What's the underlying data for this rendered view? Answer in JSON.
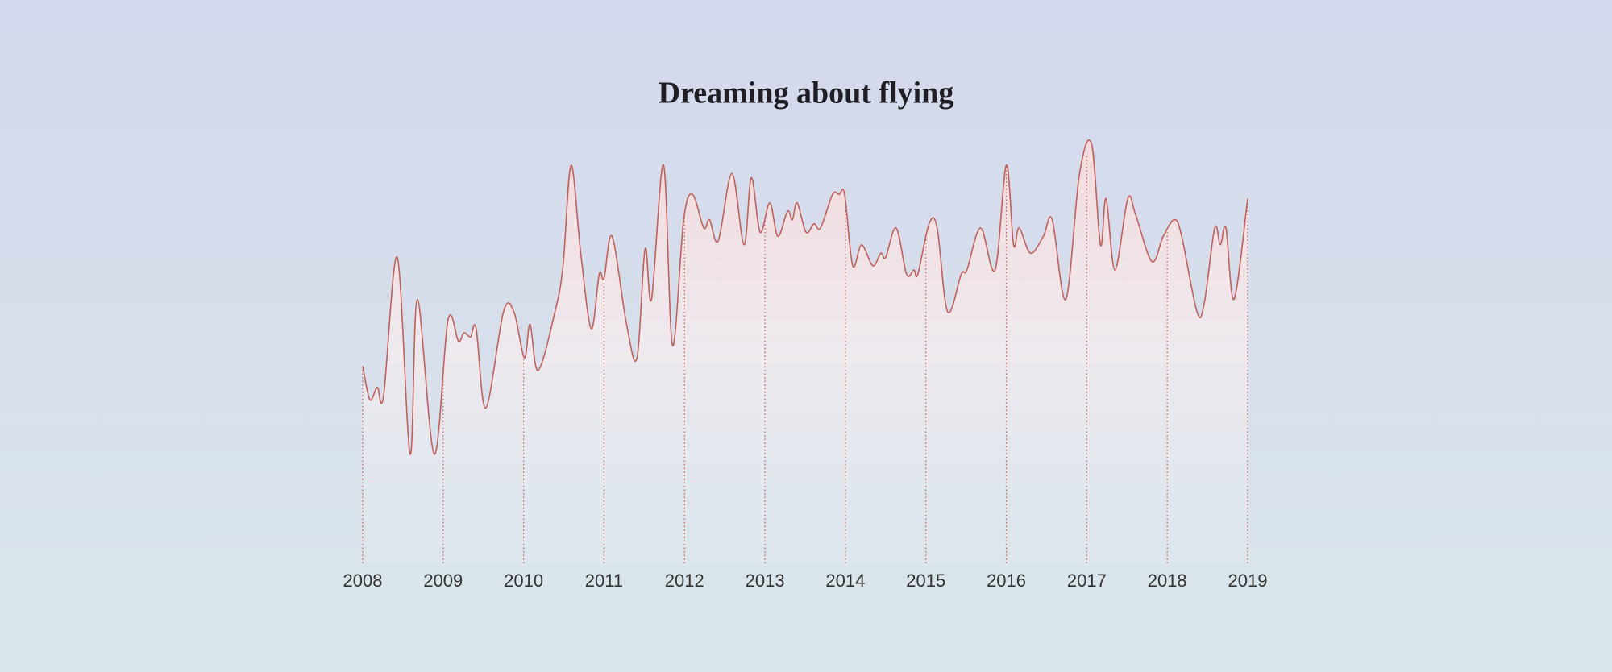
{
  "chart_data": {
    "type": "line",
    "title": "Dreaming about flying",
    "color": "#c0605a",
    "x": [
      2008.0,
      2008.09,
      2008.18,
      2008.26,
      2008.43,
      2008.59,
      2008.68,
      2008.89,
      2009.06,
      2009.19,
      2009.26,
      2009.34,
      2009.41,
      2009.53,
      2009.75,
      2009.88,
      2010.01,
      2010.08,
      2010.18,
      2010.39,
      2010.49,
      2010.59,
      2010.71,
      2010.84,
      2010.94,
      2011.0,
      2011.1,
      2011.28,
      2011.41,
      2011.51,
      2011.59,
      2011.74,
      2011.85,
      2011.99,
      2012.1,
      2012.24,
      2012.31,
      2012.42,
      2012.59,
      2012.74,
      2012.83,
      2012.94,
      2013.06,
      2013.16,
      2013.28,
      2013.34,
      2013.4,
      2013.51,
      2013.61,
      2013.69,
      2013.84,
      2013.92,
      2013.99,
      2014.09,
      2014.2,
      2014.34,
      2014.44,
      2014.5,
      2014.63,
      2014.76,
      2014.85,
      2014.9,
      2015.04,
      2015.14,
      2015.27,
      2015.44,
      2015.51,
      2015.68,
      2015.86,
      2016.0,
      2016.09,
      2016.16,
      2016.3,
      2016.46,
      2016.57,
      2016.74,
      2016.91,
      2017.06,
      2017.17,
      2017.24,
      2017.35,
      2017.51,
      2017.61,
      2017.81,
      2017.95,
      2018.09,
      2018.18,
      2018.37,
      2018.46,
      2018.59,
      2018.66,
      2018.73,
      2018.83,
      2019.0
    ],
    "values": [
      47,
      39,
      42,
      40,
      73,
      26,
      63,
      26,
      58,
      53,
      55,
      54,
      56,
      37,
      60,
      60,
      49,
      57,
      46,
      60,
      71,
      95,
      74,
      56,
      69,
      68,
      78,
      57,
      49,
      75,
      63,
      95,
      52,
      82,
      88,
      80,
      82,
      77,
      93,
      76,
      92,
      79,
      86,
      78,
      84,
      82,
      86,
      79,
      81,
      80,
      88,
      88,
      88,
      71,
      76,
      71,
      74,
      73,
      80,
      69,
      70,
      69,
      81,
      80,
      60,
      69,
      70,
      80,
      70,
      95,
      76,
      80,
      74,
      78,
      82,
      63,
      93,
      100,
      76,
      87,
      70,
      87,
      83,
      72,
      78,
      82,
      78,
      60,
      62,
      80,
      76,
      80,
      63,
      87
    ],
    "xlim": [
      2008,
      2019
    ],
    "xticks": [
      2008,
      2009,
      2010,
      2011,
      2012,
      2013,
      2014,
      2015,
      2016,
      2017,
      2018,
      2019
    ],
    "ylim": [
      0,
      100
    ]
  }
}
